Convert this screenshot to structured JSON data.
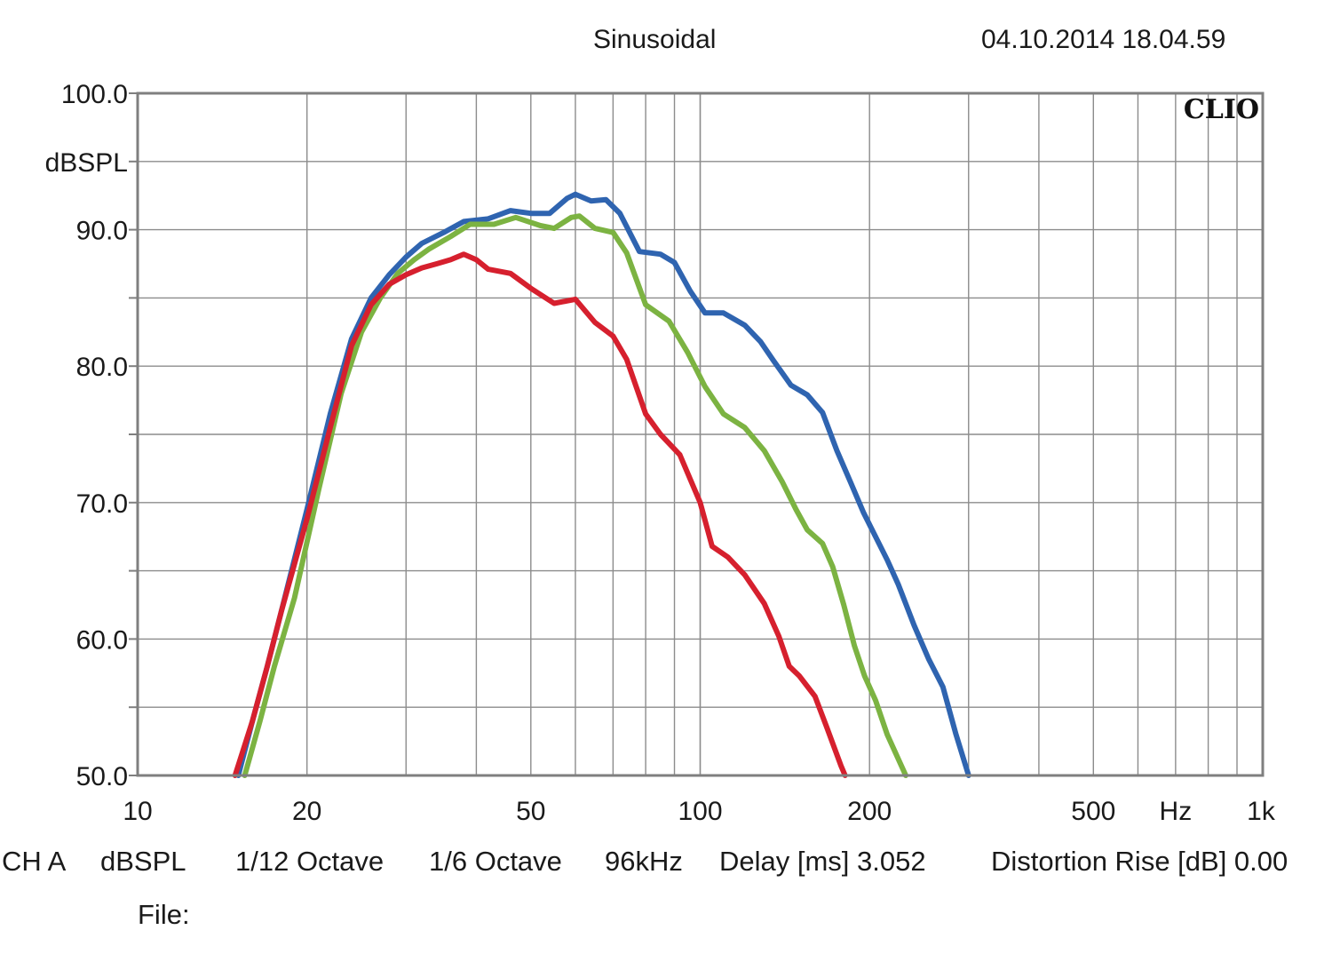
{
  "header": {
    "title": "Sinusoidal",
    "datetime": "04.10.2014 18.04.59"
  },
  "footer": {
    "channel": "CH A",
    "unit": "dBSPL",
    "smoothing": "1/12 Octave",
    "resolution": "1/6 Octave",
    "sample_rate": "96kHz",
    "delay": "Delay [ms] 3.052",
    "distortion_rise": "Distortion Rise [dB] 0.00",
    "file_label": "File:"
  },
  "chart_data": {
    "type": "line",
    "logo": "CLIO",
    "ylabel": "dBSPL",
    "x_unit": "Hz",
    "x_scale": "log",
    "xlim": [
      10,
      1000
    ],
    "ylim": [
      50,
      100
    ],
    "grid": true,
    "x_ticks": [
      10,
      20,
      50,
      100,
      200,
      500,
      1000
    ],
    "x_tick_labels": [
      "10",
      "20",
      "50",
      "100",
      "200",
      "500",
      "1k"
    ],
    "y_ticks": [
      50,
      60,
      70,
      80,
      90,
      100
    ],
    "y_tick_labels": [
      "50.0",
      "60.0",
      "70.0",
      "80.0",
      "90.0",
      "100.0"
    ],
    "series": [
      {
        "color": "#2f64b0",
        "points": [
          [
            15.1,
            50.0
          ],
          [
            16,
            54
          ],
          [
            17,
            58
          ],
          [
            18,
            62
          ],
          [
            20,
            69.5
          ],
          [
            22,
            76.5
          ],
          [
            24,
            82
          ],
          [
            26,
            85
          ],
          [
            28,
            86.7
          ],
          [
            30,
            88
          ],
          [
            32,
            89
          ],
          [
            35,
            89.8
          ],
          [
            38,
            90.6
          ],
          [
            42,
            90.8
          ],
          [
            46,
            91.4
          ],
          [
            50,
            91.2
          ],
          [
            54,
            91.2
          ],
          [
            58,
            92.3
          ],
          [
            60,
            92.6
          ],
          [
            64,
            92.1
          ],
          [
            68,
            92.2
          ],
          [
            72,
            91.2
          ],
          [
            78,
            88.4
          ],
          [
            85,
            88.2
          ],
          [
            90,
            87.6
          ],
          [
            96,
            85.5
          ],
          [
            102,
            83.9
          ],
          [
            110,
            83.9
          ],
          [
            120,
            83
          ],
          [
            128,
            81.8
          ],
          [
            135,
            80.4
          ],
          [
            145,
            78.6
          ],
          [
            155,
            77.9
          ],
          [
            165,
            76.6
          ],
          [
            175,
            73.8
          ],
          [
            185,
            71.5
          ],
          [
            195,
            69.3
          ],
          [
            205,
            67.5
          ],
          [
            215,
            65.8
          ],
          [
            225,
            64
          ],
          [
            240,
            61
          ],
          [
            255,
            58.5
          ],
          [
            270,
            56.5
          ],
          [
            285,
            53
          ],
          [
            300,
            50.0
          ]
        ]
      },
      {
        "color": "#7cb342",
        "points": [
          [
            15.5,
            50.0
          ],
          [
            16.5,
            54
          ],
          [
            17.5,
            58
          ],
          [
            19,
            63
          ],
          [
            21,
            71
          ],
          [
            23,
            78
          ],
          [
            25,
            82.5
          ],
          [
            27,
            85
          ],
          [
            29,
            86.8
          ],
          [
            31,
            87.8
          ],
          [
            33,
            88.6
          ],
          [
            36,
            89.5
          ],
          [
            39,
            90.4
          ],
          [
            43,
            90.4
          ],
          [
            47,
            90.9
          ],
          [
            52,
            90.3
          ],
          [
            55,
            90.1
          ],
          [
            59,
            90.9
          ],
          [
            61,
            91.0
          ],
          [
            65,
            90.1
          ],
          [
            70,
            89.8
          ],
          [
            74,
            88.3
          ],
          [
            80,
            84.5
          ],
          [
            88,
            83.3
          ],
          [
            95,
            81
          ],
          [
            102,
            78.5
          ],
          [
            110,
            76.5
          ],
          [
            120,
            75.5
          ],
          [
            130,
            73.8
          ],
          [
            140,
            71.5
          ],
          [
            148,
            69.5
          ],
          [
            155,
            68
          ],
          [
            165,
            67
          ],
          [
            172,
            65.3
          ],
          [
            180,
            62.5
          ],
          [
            188,
            59.5
          ],
          [
            196,
            57.3
          ],
          [
            205,
            55.5
          ],
          [
            215,
            53
          ],
          [
            232,
            50.0
          ]
        ]
      },
      {
        "color": "#d6202e",
        "points": [
          [
            14.9,
            50.0
          ],
          [
            16,
            54
          ],
          [
            17,
            58
          ],
          [
            18,
            62
          ],
          [
            20,
            68.8
          ],
          [
            22,
            75.5
          ],
          [
            24,
            81.5
          ],
          [
            26,
            84.5
          ],
          [
            28,
            86
          ],
          [
            30,
            86.7
          ],
          [
            32,
            87.2
          ],
          [
            34,
            87.5
          ],
          [
            36,
            87.8
          ],
          [
            38,
            88.2
          ],
          [
            40,
            87.8
          ],
          [
            42,
            87.1
          ],
          [
            46,
            86.8
          ],
          [
            50,
            85.7
          ],
          [
            55,
            84.6
          ],
          [
            60,
            84.9
          ],
          [
            65,
            83.2
          ],
          [
            70,
            82.2
          ],
          [
            74,
            80.5
          ],
          [
            80,
            76.5
          ],
          [
            85,
            75
          ],
          [
            92,
            73.5
          ],
          [
            100,
            70
          ],
          [
            105,
            66.8
          ],
          [
            112,
            66
          ],
          [
            120,
            64.7
          ],
          [
            130,
            62.6
          ],
          [
            138,
            60.2
          ],
          [
            144,
            58
          ],
          [
            150,
            57.3
          ],
          [
            160,
            55.8
          ],
          [
            168,
            53.5
          ],
          [
            178,
            50.7
          ],
          [
            181,
            50.0
          ]
        ]
      }
    ]
  }
}
